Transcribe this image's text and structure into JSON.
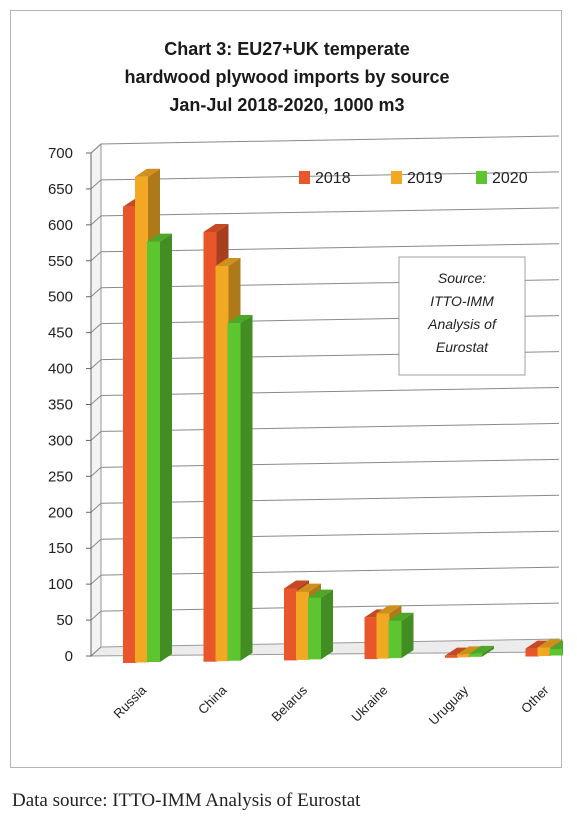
{
  "chart_data": {
    "type": "bar",
    "title": [
      "Chart 3: EU27+UK temperate",
      "hardwood plywood imports by source",
      "Jan-Jul 2018-2020, 1000 m3"
    ],
    "categories": [
      "Russia",
      "China",
      "Belarus",
      "Ukraine",
      "Uruguay",
      "Other"
    ],
    "series": [
      {
        "name": "2018",
        "values": [
          635,
          598,
          100,
          58,
          3,
          11
        ],
        "color": "#e8562a"
      },
      {
        "name": "2019",
        "values": [
          676,
          550,
          95,
          63,
          4,
          12
        ],
        "color": "#f2a822"
      },
      {
        "name": "2020",
        "values": [
          585,
          470,
          86,
          52,
          4,
          9
        ],
        "color": "#5cc530"
      }
    ],
    "ylim": [
      0,
      700
    ],
    "yticks": [
      0,
      50,
      100,
      150,
      200,
      250,
      300,
      350,
      400,
      450,
      500,
      550,
      600,
      650,
      700
    ],
    "grid": true,
    "legend_position": "top-right",
    "annotation": [
      "Source:",
      "ITTO-IMM",
      "Analysis of",
      "Eurostat"
    ],
    "xlabel": "",
    "ylabel": ""
  },
  "footer": {
    "source_text": "Data source: ITTO-IMM Analysis of Eurostat"
  }
}
